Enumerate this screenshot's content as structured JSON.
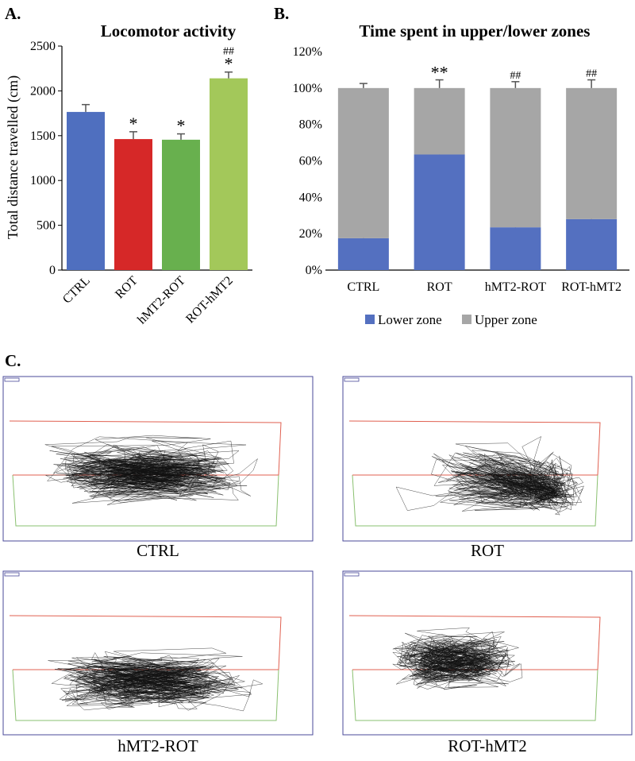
{
  "panels": {
    "a": "A.",
    "b": "B.",
    "c": "C."
  },
  "chart_data": [
    {
      "type": "bar",
      "title": "Locomotor activity",
      "xlabel": "",
      "ylabel": "Total distance travelled (cm)",
      "categories": [
        "CTRL",
        "ROT",
        "hMT2-ROT",
        "ROT-hMT2"
      ],
      "values": [
        1765,
        1462,
        1455,
        2140
      ],
      "errors": [
        82,
        82,
        65,
        70
      ],
      "colors": [
        "#4f6fbf",
        "#d62828",
        "#68b04e",
        "#a3c85a"
      ],
      "annotations": [
        "",
        "*",
        "*",
        "*"
      ],
      "annotations_top": [
        "",
        "",
        "",
        "##"
      ],
      "yticks": [
        "0",
        "500",
        "1000",
        "1500",
        "2000",
        "2500"
      ],
      "ylim": [
        0,
        2500
      ],
      "grid": false
    },
    {
      "type": "bar",
      "stacked": true,
      "title": "Time spent in upper/lower zones",
      "xlabel": "",
      "ylabel": "",
      "categories": [
        "CTRL",
        "ROT",
        "hMT2-ROT",
        "ROT-hMT2"
      ],
      "series": [
        {
          "name": "Lower zone",
          "values": [
            17.5,
            63.5,
            23.5,
            28
          ],
          "errors": [
            3,
            4.5,
            3.5,
            4.5
          ],
          "color": "#5470c0"
        },
        {
          "name": "Upper zone",
          "values": [
            82.5,
            36.5,
            76.5,
            72
          ],
          "errors": [
            2.5,
            4.5,
            3.5,
            4.5
          ],
          "color": "#a6a6a6"
        }
      ],
      "annotations_lower": [
        "",
        "**",
        "##",
        "##"
      ],
      "annotations_upper": [
        "",
        "**",
        "##",
        "##"
      ],
      "yticks": [
        "0%",
        "20%",
        "40%",
        "60%",
        "80%",
        "100%",
        "120%"
      ],
      "ylim": [
        0,
        120
      ],
      "legend": "bottom",
      "grid": false
    }
  ],
  "tracks": [
    {
      "label": "CTRL",
      "pattern": "dense-full"
    },
    {
      "label": "ROT",
      "pattern": "lower-right-cluster"
    },
    {
      "label": "hMT2-ROT",
      "pattern": "horizontal-bands"
    },
    {
      "label": "ROT-hMT2",
      "pattern": "upper-left-dense"
    }
  ],
  "colors": {
    "frame": "#4a4a9a",
    "upper_boundary": "#e06050",
    "lower_boundary": "#8ac070",
    "track": "#111111"
  }
}
